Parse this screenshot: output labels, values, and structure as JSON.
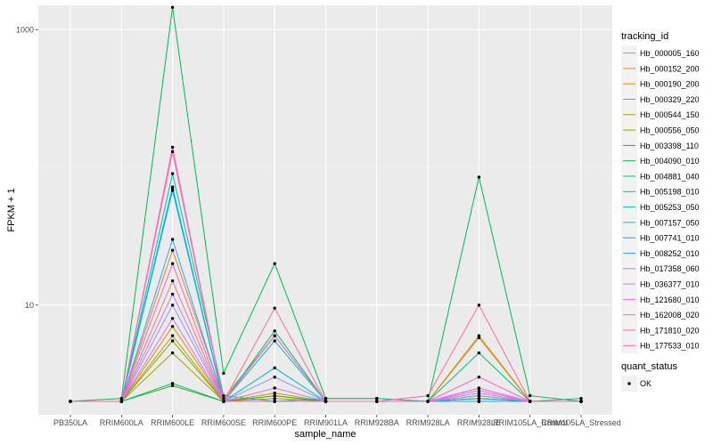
{
  "chart_data": {
    "type": "line",
    "title": "",
    "xlabel": "sample_name",
    "ylabel": "FPKM + 1",
    "y_scale": "log10",
    "ylim": [
      1.6,
      1500
    ],
    "y_ticks": [
      {
        "value": 10,
        "label": "10"
      },
      {
        "value": 1000,
        "label": "1000"
      }
    ],
    "categories": [
      "PB350LA",
      "RRIM600LA",
      "RRIM600LE",
      "RRIM600SE",
      "RRIM600PE",
      "RRIM901LA",
      "RRIM928BA",
      "RRIM928LA",
      "RRIM928LE",
      "RRIM105LA_Control",
      "RRIM105LA_Stressed"
    ],
    "grid": true,
    "legend": {
      "position": "right",
      "title": "tracking_id",
      "point_title": "quant_status",
      "point_label": "OK"
    },
    "series": [
      {
        "name": "Hb_000005_160",
        "color": "#F8766D",
        "values": [
          2.0,
          2.0,
          15.0,
          2.0,
          2.0,
          2.0,
          2.0,
          2.0,
          2.2,
          2.0,
          2.0
        ]
      },
      {
        "name": "Hb_000152_200",
        "color": "#EA8331",
        "values": [
          2.0,
          2.0,
          25.0,
          2.1,
          6.0,
          2.0,
          2.0,
          2.0,
          6.0,
          2.0,
          2.0
        ]
      },
      {
        "name": "Hb_000190_200",
        "color": "#D89000",
        "values": [
          2.0,
          2.0,
          7.0,
          2.0,
          2.3,
          2.0,
          2.0,
          2.0,
          2.2,
          2.0,
          2.0
        ]
      },
      {
        "name": "Hb_000329_220",
        "color": "#C09B00",
        "values": [
          2.0,
          2.0,
          6.0,
          2.0,
          2.2,
          2.0,
          2.0,
          2.0,
          5.8,
          2.0,
          2.0
        ]
      },
      {
        "name": "Hb_000544_150",
        "color": "#A3A500",
        "values": [
          2.0,
          2.0,
          4.5,
          2.0,
          2.1,
          2.0,
          2.0,
          2.0,
          2.1,
          2.0,
          2.0
        ]
      },
      {
        "name": "Hb_000556_050",
        "color": "#7CAE00",
        "values": [
          2.0,
          2.0,
          5.5,
          2.0,
          2.0,
          2.0,
          2.0,
          2.0,
          2.1,
          2.0,
          2.0
        ]
      },
      {
        "name": "Hb_003398_110",
        "color": "#39B600",
        "values": [
          2.0,
          2.0,
          2.6,
          2.0,
          2.2,
          2.0,
          2.0,
          2.0,
          2.0,
          2.0,
          2.0
        ]
      },
      {
        "name": "Hb_004090_010",
        "color": "#00BB4E",
        "values": [
          2.0,
          2.1,
          1450.0,
          3.2,
          20.0,
          2.1,
          2.1,
          2.0,
          85.0,
          2.2,
          2.0
        ]
      },
      {
        "name": "Hb_004881_040",
        "color": "#00BF7D",
        "values": [
          2.0,
          2.0,
          2.7,
          2.0,
          6.5,
          2.0,
          2.0,
          2.0,
          4.5,
          2.0,
          2.0
        ]
      },
      {
        "name": "Hb_005198_010",
        "color": "#00C1A3",
        "values": [
          2.0,
          2.0,
          90.0,
          2.2,
          2.0,
          2.1,
          2.1,
          2.0,
          2.1,
          2.0,
          2.1
        ]
      },
      {
        "name": "Hb_005253_050",
        "color": "#00BFC4",
        "values": [
          2.0,
          2.0,
          70.0,
          2.0,
          3.5,
          2.0,
          2.0,
          2.0,
          2.0,
          2.0,
          2.0
        ]
      },
      {
        "name": "Hb_007157_050",
        "color": "#00BAE0",
        "values": [
          2.0,
          2.0,
          72.0,
          2.0,
          5.5,
          2.0,
          2.0,
          2.0,
          2.0,
          2.0,
          2.0
        ]
      },
      {
        "name": "Hb_007741_010",
        "color": "#00B0F6",
        "values": [
          2.0,
          2.0,
          68.0,
          2.0,
          2.0,
          2.0,
          2.0,
          2.0,
          2.0,
          2.0,
          2.0
        ]
      },
      {
        "name": "Hb_008252_010",
        "color": "#35A2FF",
        "values": [
          2.0,
          2.0,
          30.0,
          2.0,
          2.0,
          2.0,
          2.0,
          2.0,
          2.0,
          2.0,
          2.0
        ]
      },
      {
        "name": "Hb_017358_060",
        "color": "#9590FF",
        "values": [
          2.0,
          2.0,
          10.0,
          2.0,
          3.0,
          2.0,
          2.0,
          2.0,
          2.3,
          2.0,
          2.0
        ]
      },
      {
        "name": "Hb_036377_010",
        "color": "#C77CFF",
        "values": [
          2.0,
          2.0,
          12.0,
          2.0,
          2.5,
          2.0,
          2.0,
          2.0,
          2.2,
          2.0,
          2.0
        ]
      },
      {
        "name": "Hb_121680_010",
        "color": "#E76BF3",
        "values": [
          2.0,
          2.0,
          8.0,
          2.0,
          2.0,
          2.0,
          2.0,
          2.0,
          2.4,
          2.0,
          2.0
        ]
      },
      {
        "name": "Hb_162008_020",
        "color": "#FA62DB",
        "values": [
          2.0,
          2.0,
          140.0,
          2.0,
          2.0,
          2.0,
          2.0,
          2.0,
          2.5,
          2.0,
          2.0
        ]
      },
      {
        "name": "Hb_171810_020",
        "color": "#FF62BC",
        "values": [
          2.0,
          2.0,
          20.0,
          2.0,
          6.0,
          2.0,
          2.0,
          2.0,
          3.0,
          2.0,
          2.0
        ]
      },
      {
        "name": "Hb_177533_010",
        "color": "#FF6C91",
        "values": [
          2.0,
          2.0,
          130.0,
          2.0,
          9.5,
          2.0,
          2.0,
          2.2,
          10.0,
          2.0,
          2.0
        ]
      }
    ]
  }
}
